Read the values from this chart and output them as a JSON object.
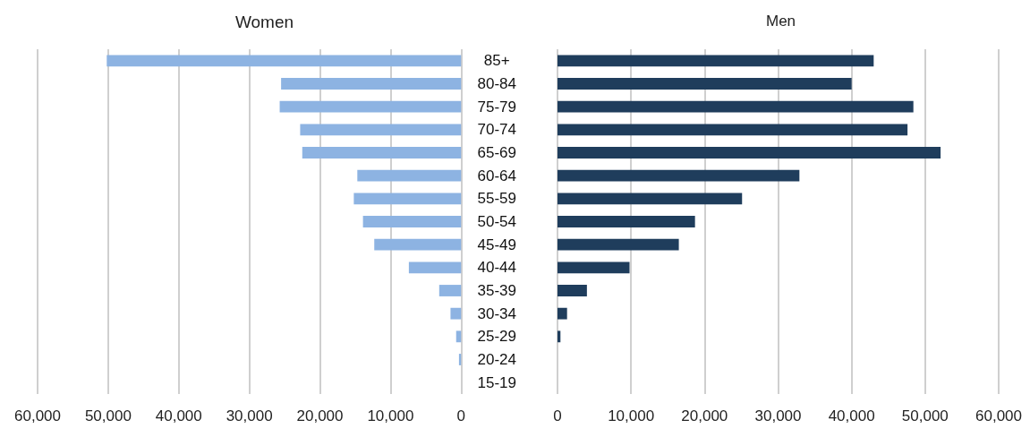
{
  "chart_data": [
    {
      "type": "bar",
      "orientation": "horizontal",
      "title": "Women",
      "color": "#8db3e2",
      "grid": "x",
      "categories": [
        "85+",
        "80-84",
        "75-79",
        "70-74",
        "65-69",
        "60-64",
        "55-59",
        "50-54",
        "45-49",
        "40-44",
        "35-39",
        "30-34",
        "25-29",
        "20-24",
        "15-19"
      ],
      "values": [
        50200,
        25500,
        25700,
        22800,
        22500,
        14700,
        15200,
        13900,
        12300,
        7400,
        3100,
        1500,
        700,
        300,
        0
      ],
      "xlim": [
        60000,
        0
      ],
      "xticks": [
        {
          "value": 60000,
          "label": "60,000"
        },
        {
          "value": 50000,
          "label": "50,000"
        },
        {
          "value": 40000,
          "label": "40,000"
        },
        {
          "value": 30000,
          "label": "30,000"
        },
        {
          "value": 20000,
          "label": "20,000"
        },
        {
          "value": 10000,
          "label": "10,000"
        },
        0
      ]
    },
    {
      "type": "bar",
      "orientation": "horizontal",
      "title": "Men",
      "color": "#1f3d5c",
      "grid": "x",
      "categories": [
        null,
        null,
        null,
        null,
        null,
        null,
        null,
        null,
        null,
        null,
        null,
        null,
        null,
        null,
        null
      ],
      "values": [
        43000,
        40000,
        48400,
        47600,
        52100,
        32900,
        25100,
        18700,
        16500,
        9800,
        4000,
        1300,
        400,
        0,
        0
      ],
      "xlim": [
        0,
        60000
      ],
      "xticks": [
        0,
        {
          "value": 10000,
          "label": "10,000"
        },
        {
          "value": 20000,
          "label": "20,000"
        },
        {
          "value": 30000,
          "label": "30,000"
        },
        {
          "value": 40000,
          "label": "40,000"
        },
        {
          "value": 50000,
          "label": "50,000"
        },
        {
          "value": 60000,
          "label": "60,000"
        }
      ]
    }
  ]
}
